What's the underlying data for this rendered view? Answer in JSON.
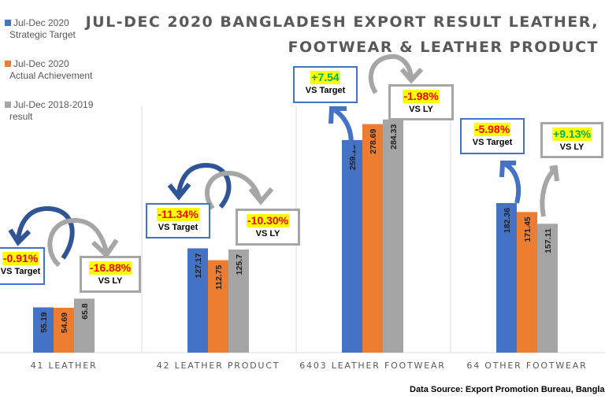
{
  "chart_data": {
    "type": "bar",
    "title": "JUL-DEC 2020 BANGLADESH EXPORT RESULT LEATHER, FOOTWEAR & LEATHER PRODUCT",
    "title_lines": [
      "JUL-DEC 2020 BANGLADESH EXPORT RESULT LEATHER,",
      "FOOTWEAR & LEATHER PRODUCT"
    ],
    "categories": [
      "41 LEATHER",
      "42 LEATHER PRODUCT",
      "6403 LEATHER FOOTWEAR",
      "64 OTHER FOOTWEAR"
    ],
    "series": [
      {
        "name": "Jul-Dec 2020 Strategic Target",
        "legend_lines": [
          "Jul-Dec 2020",
          "Strategic Target"
        ],
        "color": "#4472c4",
        "values": [
          55.19,
          127.17,
          259.15,
          182.36
        ]
      },
      {
        "name": "Jul-Dec 2020 Actual Achievement",
        "legend_lines": [
          "Jul-Dec 2020",
          "Actual Achievement"
        ],
        "color": "#ed7d31",
        "values": [
          54.69,
          112.75,
          278.69,
          171.45
        ]
      },
      {
        "name": "Jul-Dec 2018-2019 result",
        "legend_lines": [
          "Jul-Dec 2018-2019",
          "result"
        ],
        "color": "#a5a5a5",
        "values": [
          65.8,
          125.7,
          284.33,
          157.11
        ]
      }
    ],
    "value_labels": [
      [
        "55.19",
        "127.17",
        "259.15",
        "182.36"
      ],
      [
        "54.69",
        "112.75",
        "278.69",
        "171.45"
      ],
      [
        "65.8",
        "125.7",
        "284.33",
        "157.11"
      ]
    ],
    "ylim": [
      0,
      300
    ],
    "grid": false,
    "legend_position": "top-left",
    "annotations": [
      {
        "category": "41 LEATHER",
        "vs_target": "-0.91%",
        "vs_target_color": "#ff0000",
        "vs_ly": "-16.88%",
        "vs_ly_color": "#ff0000"
      },
      {
        "category": "42 LEATHER PRODUCT",
        "vs_target": "-11.34%",
        "vs_target_color": "#ff0000",
        "vs_ly": "-10.30%",
        "vs_ly_color": "#ff0000"
      },
      {
        "category": "6403 LEATHER FOOTWEAR",
        "vs_target": "+7.54",
        "vs_target_color": "#00b050",
        "vs_ly": "-1.98%",
        "vs_ly_color": "#ff0000"
      },
      {
        "category": "64 OTHER FOOTWEAR",
        "vs_target": "-5.98%",
        "vs_target_color": "#ff0000",
        "vs_ly": "+9.13%",
        "vs_ly_color": "#00b050"
      }
    ],
    "vs_target_label": "VS Target",
    "vs_ly_label": "VS LY",
    "source": "Data Source: Export Promotion Bureau, Banglades"
  }
}
